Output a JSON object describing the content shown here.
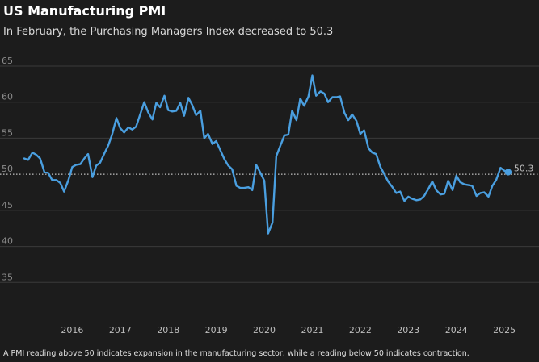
{
  "header": {
    "title": "US Manufacturing PMI",
    "subtitle": "In February, the Purchasing Managers Index decreased to 50.3"
  },
  "footer": {
    "note": "A PMI reading above 50 indicates expansion in the manufacturing sector, while a reading below 50 indicates contraction."
  },
  "colors": {
    "background": "#1c1c1c",
    "line": "#4a9fe0",
    "grid": "#3a3a3a",
    "reference": "#9a9a9a"
  },
  "chart_data": {
    "type": "line",
    "title": "US Manufacturing PMI",
    "subtitle": "In February, the Purchasing Managers Index decreased to 50.3",
    "xlabel": "",
    "ylabel": "",
    "ylim": [
      30,
      65
    ],
    "xlim": [
      2015.0,
      2025.2
    ],
    "y_ticks": [
      35,
      40,
      45,
      50,
      55,
      60,
      65
    ],
    "x_ticks": [
      {
        "value": 2016,
        "label": "2016"
      },
      {
        "value": 2017,
        "label": "2017"
      },
      {
        "value": 2018,
        "label": "2018"
      },
      {
        "value": 2019,
        "label": "2019"
      },
      {
        "value": 2020,
        "label": "2020"
      },
      {
        "value": 2021,
        "label": "2021"
      },
      {
        "value": 2022,
        "label": "2022"
      },
      {
        "value": 2023,
        "label": "2023"
      },
      {
        "value": 2024,
        "label": "2024"
      },
      {
        "value": 2025,
        "label": "2025"
      }
    ],
    "grid": "horizontal",
    "reference_line": {
      "y": 50,
      "style": "dotted"
    },
    "end_label": "50.3",
    "series": [
      {
        "name": "",
        "x": [
          2015.0,
          2015.08,
          2015.17,
          2015.25,
          2015.33,
          2015.42,
          2015.5,
          2015.58,
          2015.67,
          2015.75,
          2015.83,
          2015.92,
          2016.0,
          2016.08,
          2016.17,
          2016.25,
          2016.33,
          2016.42,
          2016.5,
          2016.58,
          2016.67,
          2016.75,
          2016.83,
          2016.92,
          2017.0,
          2017.08,
          2017.17,
          2017.25,
          2017.33,
          2017.42,
          2017.5,
          2017.58,
          2017.67,
          2017.75,
          2017.83,
          2017.92,
          2018.0,
          2018.08,
          2018.17,
          2018.25,
          2018.33,
          2018.42,
          2018.5,
          2018.58,
          2018.67,
          2018.75,
          2018.83,
          2018.92,
          2019.0,
          2019.08,
          2019.17,
          2019.25,
          2019.33,
          2019.42,
          2019.5,
          2019.58,
          2019.67,
          2019.75,
          2019.83,
          2019.92,
          2020.0,
          2020.08,
          2020.17,
          2020.25,
          2020.33,
          2020.42,
          2020.5,
          2020.58,
          2020.67,
          2020.75,
          2020.83,
          2020.92,
          2021.0,
          2021.08,
          2021.17,
          2021.25,
          2021.33,
          2021.42,
          2021.5,
          2021.58,
          2021.67,
          2021.75,
          2021.83,
          2021.92,
          2022.0,
          2022.08,
          2022.17,
          2022.25,
          2022.33,
          2022.42,
          2022.5,
          2022.58,
          2022.67,
          2022.75,
          2022.83,
          2022.92,
          2023.0,
          2023.08,
          2023.17,
          2023.25,
          2023.33,
          2023.42,
          2023.5,
          2023.58,
          2023.67,
          2023.75,
          2023.83,
          2023.92,
          2024.0,
          2024.08,
          2024.17,
          2024.25,
          2024.33,
          2024.42,
          2024.5,
          2024.58,
          2024.67,
          2024.75,
          2024.83,
          2024.92,
          2025.0,
          2025.08
        ],
        "values": [
          52.2,
          52.0,
          53.0,
          52.7,
          52.2,
          50.3,
          50.2,
          49.2,
          49.2,
          48.8,
          47.6,
          49.2,
          51.0,
          51.3,
          51.4,
          52.2,
          52.8,
          49.6,
          51.2,
          51.6,
          52.9,
          54.0,
          55.5,
          57.8,
          56.4,
          55.8,
          56.5,
          56.2,
          56.6,
          58.4,
          60.0,
          58.6,
          57.6,
          59.9,
          59.3,
          60.9,
          58.9,
          58.7,
          58.8,
          59.9,
          58.1,
          60.6,
          59.6,
          58.2,
          58.8,
          55.0,
          55.6,
          54.2,
          54.6,
          53.4,
          52.1,
          51.2,
          50.7,
          48.4,
          48.1,
          48.1,
          48.2,
          47.8,
          51.3,
          50.2,
          49.1,
          41.8,
          43.3,
          52.5,
          53.9,
          55.4,
          55.5,
          58.8,
          57.5,
          60.5,
          59.5,
          60.8,
          63.7,
          60.9,
          61.5,
          61.2,
          60.0,
          60.7,
          60.7,
          60.8,
          58.5,
          57.5,
          58.3,
          57.4,
          55.6,
          56.1,
          53.6,
          53.0,
          52.8,
          51.0,
          50.0,
          49.0,
          48.2,
          47.4,
          47.6,
          46.3,
          46.9,
          46.6,
          46.4,
          46.5,
          47.0,
          48.0,
          49.0,
          47.8,
          47.2,
          47.3,
          49.1,
          47.8,
          49.8,
          48.9,
          48.6,
          48.5,
          48.4,
          47.0,
          47.4,
          47.5,
          46.9,
          48.4,
          49.2,
          50.9,
          50.5,
          50.3
        ],
        "color": "#4a9fe0"
      }
    ]
  }
}
